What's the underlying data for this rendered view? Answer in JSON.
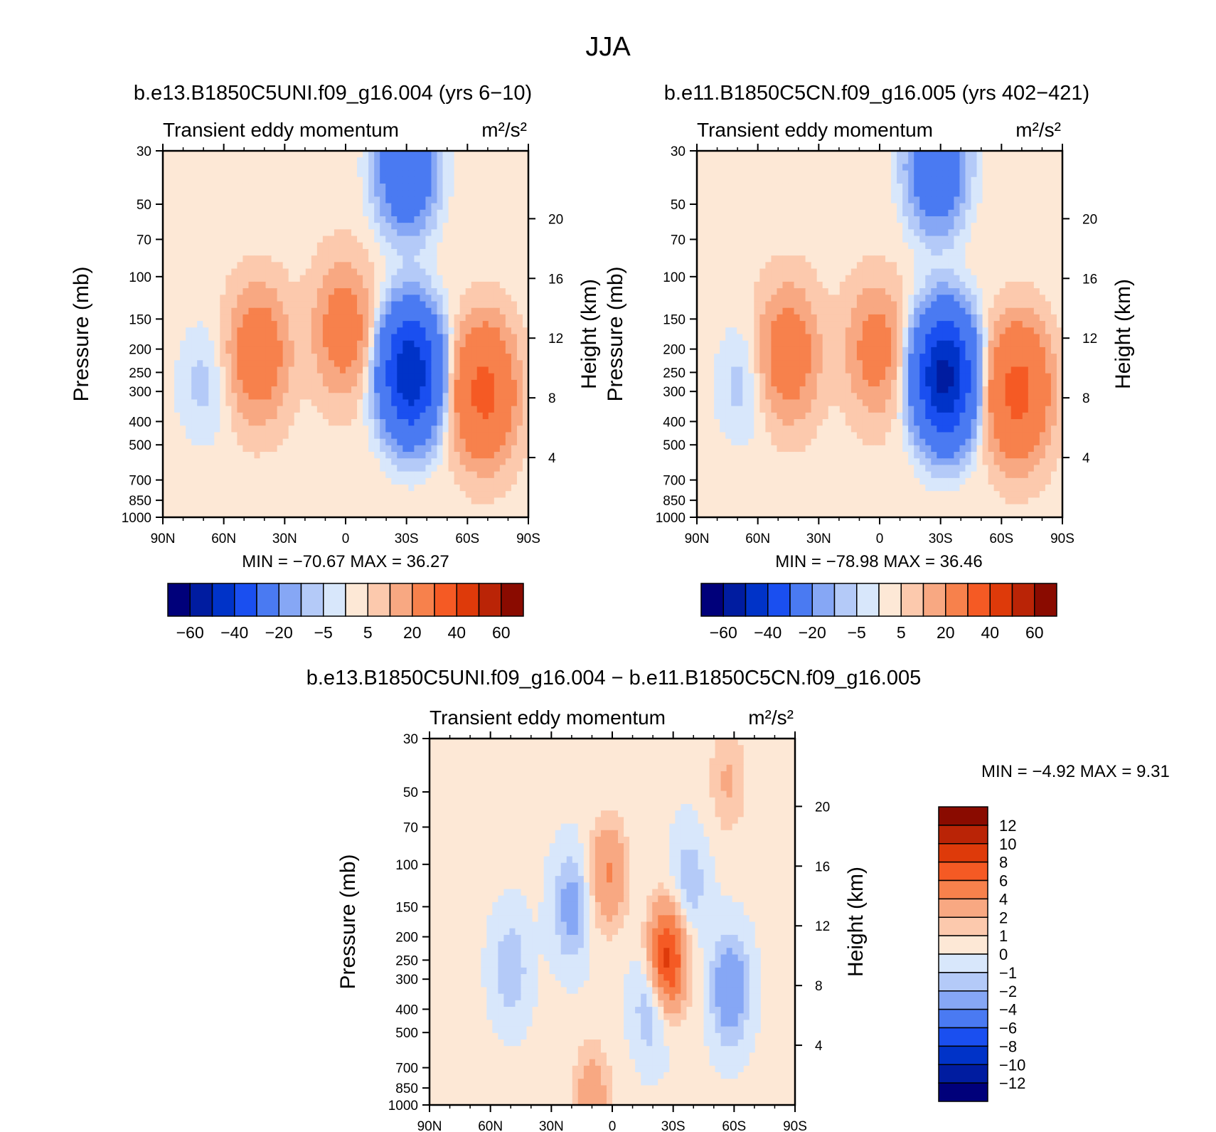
{
  "figure": {
    "title": "JJA",
    "diff_title": "b.e13.B1850C5UNI.f09_g16.004 − b.e11.B1850C5CN.f09_g16.005"
  },
  "chart_data": [
    {
      "type": "heatmap",
      "case_title": "b.e13.B1850C5UNI.f09_g16.004 (yrs 6−10)",
      "variable": "Transient eddy momentum",
      "units": "m²/s²",
      "ylabel": "Pressure (mb)",
      "ylabel_right": "Height (km)",
      "x_ticks": [
        "90N",
        "60N",
        "30N",
        "0",
        "30S",
        "60S",
        "90S"
      ],
      "x_range": [
        90,
        -90
      ],
      "y_ticks": [
        30,
        50,
        70,
        100,
        150,
        200,
        250,
        300,
        400,
        500,
        700,
        850,
        1000
      ],
      "y_scale": "log",
      "y_range": [
        30,
        1000
      ],
      "height_ticks": [
        4,
        8,
        12,
        16,
        20
      ],
      "stats": {
        "min_label": "MIN =",
        "min": "−70.67",
        "max_label": "MAX =",
        "max": "36.27"
      },
      "colorbar": {
        "orientation": "horizontal",
        "labels": [
          "−60",
          "−40",
          "−20",
          "−5",
          "5",
          "20",
          "40",
          "60"
        ]
      },
      "features": [
        {
          "lat": 43,
          "p": 210,
          "value": 18
        },
        {
          "lat": 1,
          "p": 165,
          "value": 15
        },
        {
          "lat": -32,
          "p": 250,
          "value": -68
        },
        {
          "lat": -68,
          "p": 300,
          "value": 35
        },
        {
          "lat": -30,
          "p": 35,
          "value": -28
        },
        {
          "lat": 70,
          "p": 280,
          "value": -4
        }
      ]
    },
    {
      "type": "heatmap",
      "case_title": "b.e11.B1850C5CN.f09_g16.005 (yrs 402−421)",
      "variable": "Transient eddy momentum",
      "units": "m²/s²",
      "ylabel": "Pressure (mb)",
      "ylabel_right": "Height (km)",
      "x_ticks": [
        "90N",
        "60N",
        "30N",
        "0",
        "30S",
        "60S",
        "90S"
      ],
      "x_range": [
        90,
        -90
      ],
      "y_ticks": [
        30,
        50,
        70,
        100,
        150,
        200,
        250,
        300,
        400,
        500,
        700,
        850,
        1000
      ],
      "y_scale": "log",
      "y_range": [
        30,
        1000
      ],
      "height_ticks": [
        4,
        8,
        12,
        16,
        20
      ],
      "stats": {
        "min_label": "MIN =",
        "min": "−78.98",
        "max_label": "MAX =",
        "max": "36.46"
      },
      "colorbar": {
        "orientation": "horizontal",
        "labels": [
          "−60",
          "−40",
          "−20",
          "−5",
          "5",
          "20",
          "40",
          "60"
        ]
      },
      "features": [
        {
          "lat": 45,
          "p": 210,
          "value": 17
        },
        {
          "lat": 2,
          "p": 200,
          "value": 13
        },
        {
          "lat": -32,
          "p": 260,
          "value": -78
        },
        {
          "lat": -68,
          "p": 300,
          "value": 36
        },
        {
          "lat": -28,
          "p": 35,
          "value": -25
        },
        {
          "lat": 68,
          "p": 280,
          "value": -4
        }
      ]
    },
    {
      "type": "heatmap",
      "variable": "Transient eddy momentum",
      "units": "m²/s²",
      "ylabel": "Pressure (mb)",
      "ylabel_right": "Height (km)",
      "x_ticks": [
        "90N",
        "60N",
        "30N",
        "0",
        "30S",
        "60S",
        "90S"
      ],
      "x_range": [
        90,
        -90
      ],
      "y_ticks": [
        30,
        50,
        70,
        100,
        150,
        200,
        250,
        300,
        400,
        500,
        700,
        850,
        1000
      ],
      "y_scale": "log",
      "y_range": [
        30,
        1000
      ],
      "height_ticks": [
        4,
        8,
        12,
        16,
        20
      ],
      "stats": {
        "min_label": "MIN =",
        "min": "−4.92",
        "max_label": "MAX =",
        "max": "9.31"
      },
      "colorbar": {
        "orientation": "vertical",
        "labels": [
          "12",
          "10",
          "8",
          "6",
          "4",
          "2",
          "1",
          "0",
          "−1",
          "−2",
          "−4",
          "−6",
          "−8",
          "−10",
          "−12"
        ]
      },
      "features": [
        {
          "lat": -27,
          "p": 250,
          "value": 9
        },
        {
          "lat": 2,
          "p": 110,
          "value": 4
        },
        {
          "lat": -20,
          "p": 370,
          "value": -3
        },
        {
          "lat": 20,
          "p": 150,
          "value": -3
        },
        {
          "lat": -58,
          "p": 330,
          "value": -4
        },
        {
          "lat": -38,
          "p": 120,
          "value": -2
        },
        {
          "lat": 10,
          "p": 950,
          "value": 3
        },
        {
          "lat": 50,
          "p": 270,
          "value": -2
        },
        {
          "lat": -57,
          "p": 45,
          "value": 2
        }
      ]
    }
  ],
  "colors": {
    "panel_palette": [
      "#00007a",
      "#001ca0",
      "#0033c8",
      "#1a4ff0",
      "#4a7af2",
      "#86a7f5",
      "#b4caf8",
      "#d8e7fb",
      "#fde8d6",
      "#fcc9ad",
      "#f8a882",
      "#f7814c",
      "#f55a24",
      "#de3a0a",
      "#ba2406",
      "#8a0b00"
    ],
    "diff_palette": [
      "#00007a",
      "#001ca0",
      "#0033c8",
      "#1a4ff0",
      "#4a7af2",
      "#86a7f5",
      "#b4caf8",
      "#d8e7fb",
      "#fde8d6",
      "#fcc9ad",
      "#f8a882",
      "#f7814c",
      "#f55a24",
      "#de3a0a",
      "#ba2406",
      "#8a0b00"
    ]
  }
}
